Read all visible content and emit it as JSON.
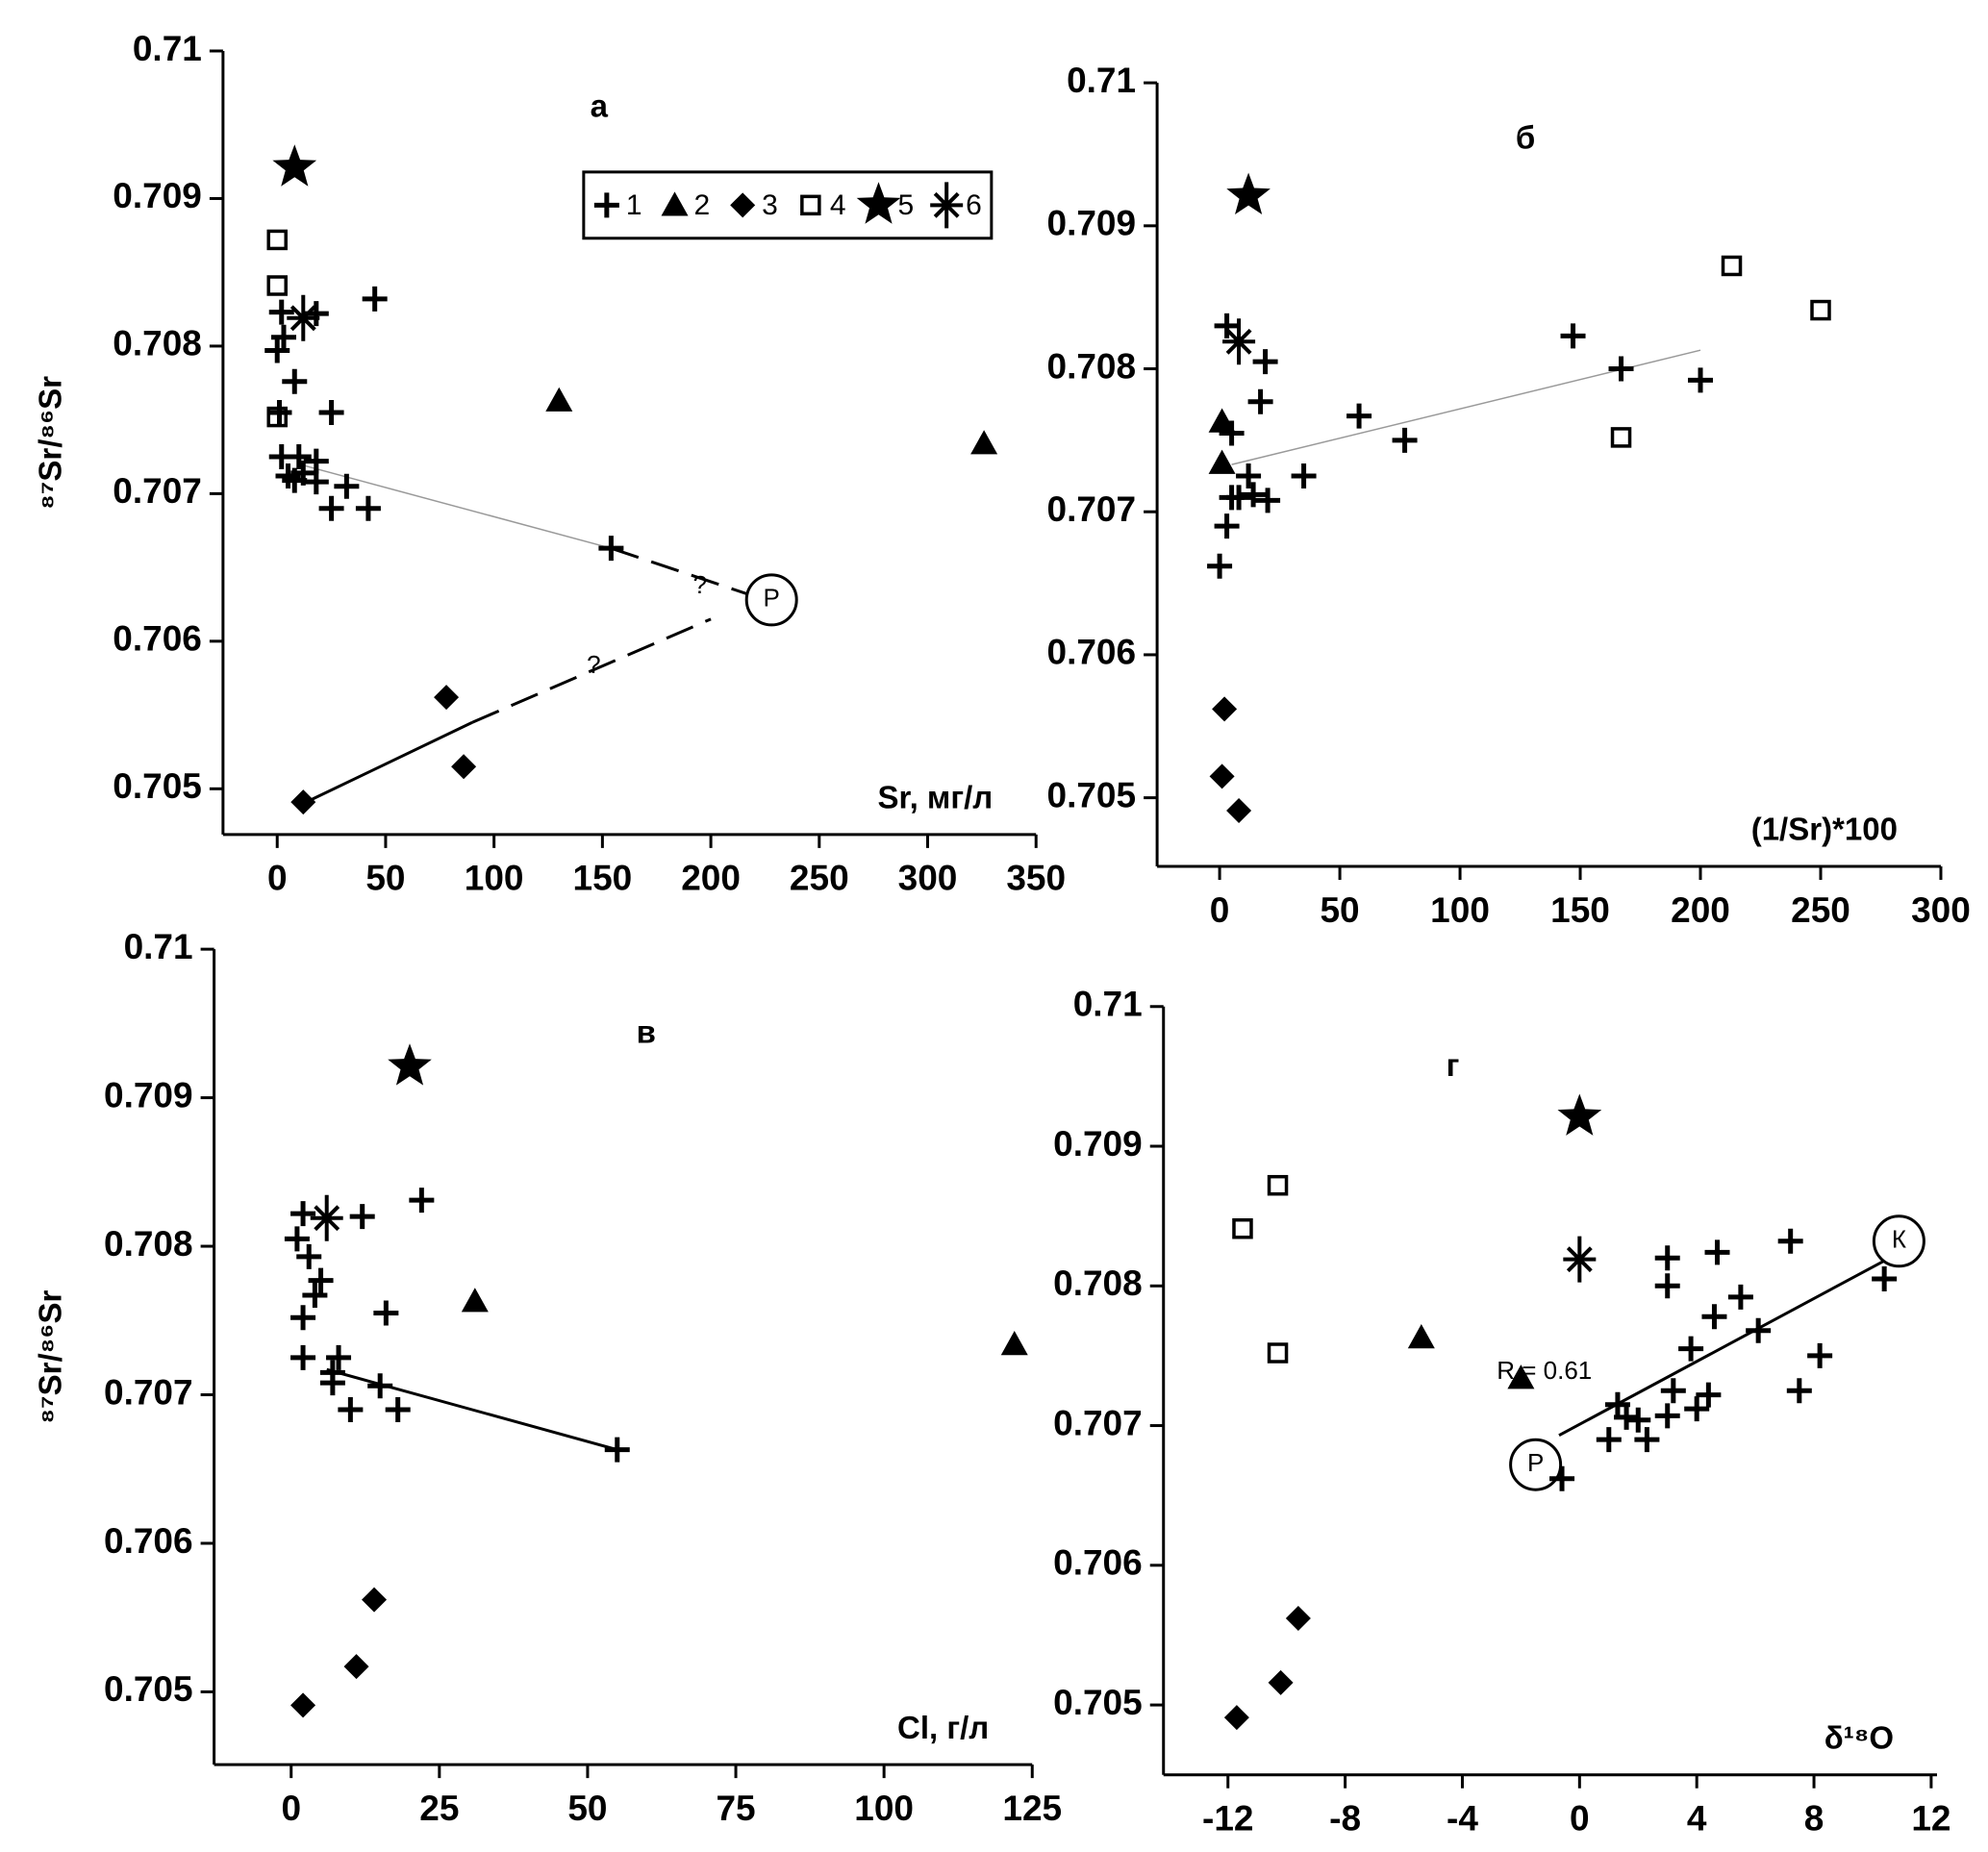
{
  "chart_data": [
    {
      "type": "scatter",
      "panel_label": "а",
      "xlabel": "Sr, мг/л",
      "ylabel": "⁸⁷Sr/⁸⁶Sr",
      "xlim": [
        -25,
        350
      ],
      "ylim": [
        0.70469,
        0.71
      ],
      "xticks": [
        0,
        50,
        100,
        150,
        200,
        250,
        300,
        350
      ],
      "yticks": [
        0.705,
        0.706,
        0.707,
        0.708,
        0.709,
        0.71
      ],
      "legend": true,
      "series": [
        {
          "name": "1",
          "marker": "plus",
          "x": [
            45,
            2,
            18,
            3,
            0,
            8,
            25,
            1,
            2,
            10,
            18,
            5,
            12,
            32,
            18,
            8,
            25,
            42,
            154
          ],
          "values": [
            0.70832,
            0.70823,
            0.70822,
            0.70806,
            0.70797,
            0.70776,
            0.70755,
            0.70755,
            0.70725,
            0.70725,
            0.70722,
            0.70712,
            0.70714,
            0.70705,
            0.70708,
            0.70709,
            0.7069,
            0.7069,
            0.70663
          ]
        },
        {
          "name": "2",
          "marker": "triangle",
          "x": [
            130,
            326
          ],
          "values": [
            0.70763,
            0.70734
          ]
        },
        {
          "name": "3",
          "marker": "diamond",
          "x": [
            78,
            86,
            12
          ],
          "values": [
            0.70562,
            0.70515,
            0.70491
          ]
        },
        {
          "name": "4",
          "marker": "square",
          "x": [
            0,
            0,
            0
          ],
          "values": [
            0.70872,
            0.70841,
            0.70752
          ]
        },
        {
          "name": "5",
          "marker": "star",
          "x": [
            8
          ],
          "values": [
            0.70921
          ]
        },
        {
          "name": "6",
          "marker": "asterisk",
          "x": [
            12
          ],
          "values": [
            0.70819
          ]
        }
      ],
      "lines": [
        {
          "x": [
            10,
            154
          ],
          "y": [
            0.7072,
            0.70663
          ],
          "dash": false,
          "color": "#999999",
          "width": 1.5
        },
        {
          "x": [
            154,
            225
          ],
          "y": [
            0.70663,
            0.70628
          ],
          "dash": true,
          "color": "#000000",
          "width": 3
        },
        {
          "x": [
            12,
            90
          ],
          "y": [
            0.7049,
            0.70545
          ],
          "dash": false,
          "color": "#000000",
          "width": 3
        },
        {
          "x": [
            90,
            200
          ],
          "y": [
            0.70545,
            0.70615
          ],
          "dash": true,
          "color": "#000000",
          "width": 3
        }
      ],
      "annotations": [
        {
          "text": "?",
          "x": 195,
          "y": 0.70637,
          "circle": false
        },
        {
          "text": "?",
          "x": 146,
          "y": 0.70583,
          "circle": false
        },
        {
          "text": "Р",
          "x": 228,
          "y": 0.70628,
          "circle": true
        }
      ]
    },
    {
      "type": "scatter",
      "panel_label": "б",
      "xlabel": "(1/Sr)*100",
      "xlim": [
        -26,
        300
      ],
      "ylim": [
        0.70452,
        0.71
      ],
      "xticks": [
        0,
        50,
        100,
        150,
        200,
        250,
        300
      ],
      "yticks": [
        0.705,
        0.706,
        0.707,
        0.708,
        0.709,
        0.71
      ],
      "series": [
        {
          "marker": "plus",
          "x": [
            3,
            19,
            17,
            147,
            167,
            200,
            58,
            77,
            35,
            12,
            5,
            5,
            14,
            20,
            8,
            3,
            0
          ],
          "values": [
            0.7083,
            0.70805,
            0.70777,
            0.70823,
            0.708,
            0.70792,
            0.70767,
            0.7075,
            0.70725,
            0.70725,
            0.70755,
            0.7071,
            0.70712,
            0.70708,
            0.7071,
            0.7069,
            0.70662
          ]
        },
        {
          "marker": "triangle",
          "x": [
            1,
            1
          ],
          "values": [
            0.70763,
            0.70734
          ]
        },
        {
          "marker": "diamond",
          "x": [
            2,
            1,
            8
          ],
          "values": [
            0.70562,
            0.70515,
            0.70491
          ]
        },
        {
          "marker": "square",
          "x": [
            213,
            250,
            167
          ],
          "values": [
            0.70872,
            0.70841,
            0.70752
          ]
        },
        {
          "marker": "star",
          "x": [
            12
          ],
          "values": [
            0.70921
          ]
        },
        {
          "marker": "asterisk",
          "x": [
            8
          ],
          "values": [
            0.70819
          ]
        }
      ],
      "lines": [
        {
          "x": [
            5,
            200
          ],
          "y": [
            0.70733,
            0.70813
          ],
          "dash": false,
          "color": "#999999",
          "width": 1.5
        }
      ],
      "annotations": []
    },
    {
      "type": "scatter",
      "panel_label": "в",
      "xlabel": "Cl, г/л",
      "ylabel": "⁸⁷Sr/⁸⁶Sr",
      "xlim": [
        -13,
        125
      ],
      "ylim": [
        0.70451,
        0.71
      ],
      "xticks": [
        0,
        25,
        50,
        75,
        100,
        125
      ],
      "yticks": [
        0.705,
        0.706,
        0.707,
        0.708,
        0.709,
        0.71
      ],
      "series": [
        {
          "marker": "plus",
          "x": [
            22,
            12,
            2,
            1,
            3,
            5,
            4,
            2,
            16,
            2,
            8,
            7,
            7,
            10,
            15,
            18,
            55
          ],
          "values": [
            0.70831,
            0.7082,
            0.70822,
            0.70805,
            0.70793,
            0.70777,
            0.70767,
            0.70752,
            0.70755,
            0.70725,
            0.70725,
            0.70715,
            0.70708,
            0.7069,
            0.70706,
            0.7069,
            0.70663
          ]
        },
        {
          "marker": "triangle",
          "x": [
            31,
            122
          ],
          "values": [
            0.70763,
            0.70734
          ]
        },
        {
          "marker": "diamond",
          "x": [
            14,
            11,
            2
          ],
          "values": [
            0.70562,
            0.70517,
            0.70491
          ]
        },
        {
          "marker": "star",
          "x": [
            20
          ],
          "values": [
            0.70921
          ]
        },
        {
          "marker": "asterisk",
          "x": [
            6
          ],
          "values": [
            0.70819
          ]
        }
      ],
      "lines": [
        {
          "x": [
            6,
            55
          ],
          "y": [
            0.70717,
            0.70663
          ],
          "dash": false,
          "color": "#000000",
          "width": 3
        }
      ],
      "annotations": []
    },
    {
      "type": "scatter",
      "panel_label": "г",
      "xlabel": "δ¹⁸O",
      "xlim": [
        -14.2,
        12.2
      ],
      "ylim": [
        0.7045,
        0.71
      ],
      "xticks": [
        -12,
        -8,
        -4,
        0,
        4,
        8,
        12
      ],
      "yticks": [
        0.705,
        0.706,
        0.707,
        0.708,
        0.709,
        0.71
      ],
      "series": [
        {
          "marker": "plus",
          "x": [
            3,
            4.7,
            7.2,
            3,
            5.5,
            4.6,
            6.1,
            10.4,
            8.2,
            3.8,
            7.5,
            3.2,
            4.4,
            4,
            1.3,
            1.6,
            3,
            2,
            1,
            2.3,
            -0.6
          ],
          "values": [
            0.7082,
            0.70824,
            0.70832,
            0.708,
            0.70792,
            0.70778,
            0.70768,
            0.70805,
            0.7075,
            0.70755,
            0.70725,
            0.70725,
            0.70722,
            0.70712,
            0.70715,
            0.70706,
            0.70707,
            0.70704,
            0.7069,
            0.7069,
            0.70662
          ]
        },
        {
          "marker": "triangle",
          "x": [
            -5.4,
            -2
          ],
          "values": [
            0.70763,
            0.70734
          ]
        },
        {
          "marker": "diamond",
          "x": [
            -9.6,
            -10.2,
            -11.7
          ],
          "values": [
            0.70562,
            0.70516,
            0.70491
          ]
        },
        {
          "marker": "square",
          "x": [
            -10.3,
            -11.5,
            -10.3
          ],
          "values": [
            0.70872,
            0.70841,
            0.70752
          ]
        },
        {
          "marker": "star",
          "x": [
            0
          ],
          "values": [
            0.70921
          ]
        },
        {
          "marker": "asterisk",
          "x": [
            0
          ],
          "values": [
            0.70819
          ]
        }
      ],
      "lines": [
        {
          "x": [
            -0.7,
            10.4
          ],
          "y": [
            0.70693,
            0.70818
          ],
          "dash": false,
          "color": "#000000",
          "width": 3
        }
      ],
      "annotations": [
        {
          "text": "R = 0.61",
          "x": -1.2,
          "y": 0.70738,
          "circle": false
        },
        {
          "text": "Р",
          "x": -1.5,
          "y": 0.70672,
          "circle": true
        },
        {
          "text": "К",
          "x": 10.9,
          "y": 0.70832,
          "circle": true
        }
      ]
    }
  ]
}
